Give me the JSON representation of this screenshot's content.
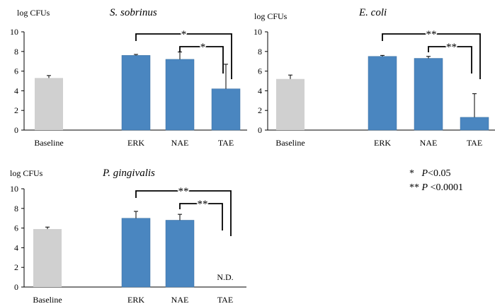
{
  "chart_data": [
    {
      "type": "bar",
      "title": "S. sobrinus",
      "ylabel": "log CFUs",
      "categories": [
        "Baseline",
        "ERK",
        "NAE",
        "TAE"
      ],
      "values": [
        5.3,
        7.6,
        7.2,
        4.2
      ],
      "errors": [
        0.25,
        0.1,
        0.75,
        2.5
      ],
      "colors": [
        "#d0d0d0",
        "#4a86c0",
        "#4a86c0",
        "#4a86c0"
      ],
      "ylim": [
        0,
        10
      ],
      "yticks": [
        "0",
        "2",
        "4",
        "6",
        "8",
        "10"
      ],
      "annotations": [
        {
          "from": "ERK",
          "to": "TAE",
          "label": "*"
        },
        {
          "from": "NAE",
          "to": "TAE",
          "label": "*"
        }
      ]
    },
    {
      "type": "bar",
      "title": "E. coli",
      "ylabel": "log CFUs",
      "categories": [
        "Baseline",
        "ERK",
        "NAE",
        "TAE"
      ],
      "values": [
        5.2,
        7.5,
        7.3,
        1.3
      ],
      "errors": [
        0.4,
        0.1,
        0.2,
        2.4
      ],
      "colors": [
        "#d0d0d0",
        "#4a86c0",
        "#4a86c0",
        "#4a86c0"
      ],
      "ylim": [
        0,
        10
      ],
      "yticks": [
        "0",
        "2",
        "4",
        "6",
        "8",
        "10"
      ],
      "annotations": [
        {
          "from": "ERK",
          "to": "TAE",
          "label": "**"
        },
        {
          "from": "NAE",
          "to": "TAE",
          "label": "**"
        }
      ]
    },
    {
      "type": "bar",
      "title": "P. gingivalis",
      "ylabel": "log CFUs",
      "categories": [
        "Baseline",
        "ERK",
        "NAE",
        "TAE"
      ],
      "values": [
        5.9,
        7.0,
        6.8,
        null
      ],
      "errors": [
        0.2,
        0.7,
        0.6,
        null
      ],
      "colors": [
        "#d0d0d0",
        "#4a86c0",
        "#4a86c0",
        "#4a86c0"
      ],
      "ylim": [
        0,
        10
      ],
      "yticks": [
        "0",
        "2",
        "4",
        "6",
        "8",
        "10"
      ],
      "missing_label": "N.D.",
      "annotations": [
        {
          "from": "ERK",
          "to": "TAE",
          "label": "**"
        },
        {
          "from": "NAE",
          "to": "TAE",
          "label": "**"
        }
      ]
    }
  ],
  "legend": {
    "line1_marker": "*",
    "line1_p": "P",
    "line1_text": "<0.05",
    "line2_marker": "**",
    "line2_p": "P",
    "line2_text": " <0.0001"
  }
}
